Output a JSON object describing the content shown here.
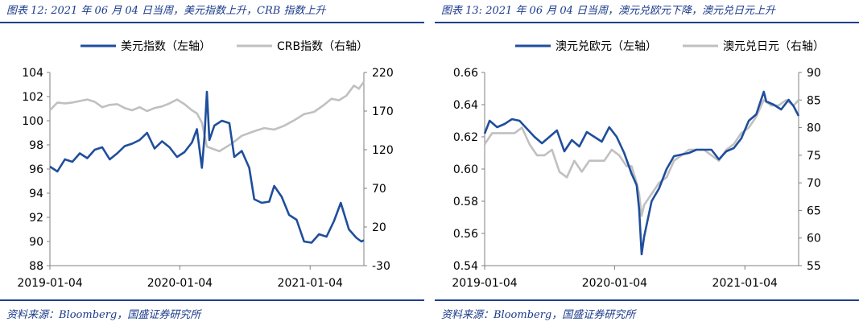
{
  "charts": [
    {
      "fig_label": "图表 12:",
      "fig_title": "2021 年 06 月 04 日当周，美元指数上升，CRB 指数上升",
      "source": "资料来源：Bloomberg，国盛证券研究所",
      "chart_data": {
        "type": "line",
        "x_ticks": [
          "2019-01-04",
          "2020-01-04",
          "2021-01-04"
        ],
        "x_range": [
          "2019-01-04",
          "2021-06-04"
        ],
        "left_axis": {
          "ticks": [
            88,
            90,
            92,
            94,
            96,
            98,
            100,
            102,
            104
          ],
          "range": [
            88,
            104
          ]
        },
        "right_axis": {
          "ticks": [
            -30,
            20,
            70,
            120,
            170,
            220
          ],
          "range": [
            -30,
            220
          ]
        },
        "series": [
          {
            "name": "美元指数（左轴）",
            "axis": "left",
            "color": "#1f4e9c",
            "points": [
              [
                "2019-01-04",
                96.2
              ],
              [
                "2019-01-25",
                95.8
              ],
              [
                "2019-02-15",
                96.8
              ],
              [
                "2019-03-08",
                96.6
              ],
              [
                "2019-03-29",
                97.3
              ],
              [
                "2019-04-19",
                96.9
              ],
              [
                "2019-05-10",
                97.6
              ],
              [
                "2019-05-31",
                97.8
              ],
              [
                "2019-06-21",
                96.8
              ],
              [
                "2019-07-12",
                97.3
              ],
              [
                "2019-08-02",
                97.9
              ],
              [
                "2019-08-23",
                98.1
              ],
              [
                "2019-09-13",
                98.4
              ],
              [
                "2019-10-04",
                99.0
              ],
              [
                "2019-10-25",
                97.7
              ],
              [
                "2019-11-15",
                98.3
              ],
              [
                "2019-12-06",
                97.8
              ],
              [
                "2019-12-27",
                97.0
              ],
              [
                "2020-01-17",
                97.4
              ],
              [
                "2020-02-07",
                98.2
              ],
              [
                "2020-02-21",
                99.3
              ],
              [
                "2020-03-06",
                96.1
              ],
              [
                "2020-03-13",
                98.6
              ],
              [
                "2020-03-20",
                102.4
              ],
              [
                "2020-03-27",
                98.4
              ],
              [
                "2020-04-10",
                99.6
              ],
              [
                "2020-05-01",
                100.0
              ],
              [
                "2020-05-22",
                99.8
              ],
              [
                "2020-06-05",
                97.0
              ],
              [
                "2020-06-26",
                97.5
              ],
              [
                "2020-07-17",
                96.1
              ],
              [
                "2020-07-31",
                93.5
              ],
              [
                "2020-08-21",
                93.2
              ],
              [
                "2020-09-11",
                93.3
              ],
              [
                "2020-09-25",
                94.6
              ],
              [
                "2020-10-16",
                93.7
              ],
              [
                "2020-11-06",
                92.2
              ],
              [
                "2020-11-27",
                91.8
              ],
              [
                "2020-12-18",
                90.0
              ],
              [
                "2021-01-08",
                89.9
              ],
              [
                "2021-01-29",
                90.6
              ],
              [
                "2021-02-19",
                90.4
              ],
              [
                "2021-03-12",
                91.7
              ],
              [
                "2021-03-31",
                93.2
              ],
              [
                "2021-04-23",
                91.0
              ],
              [
                "2021-05-14",
                90.3
              ],
              [
                "2021-05-28",
                90.0
              ],
              [
                "2021-06-04",
                90.1
              ]
            ]
          },
          {
            "name": "CRB指数（右轴）",
            "axis": "right",
            "color": "#c0c0c0",
            "points": [
              [
                "2019-01-04",
                171
              ],
              [
                "2019-01-25",
                181
              ],
              [
                "2019-02-15",
                180
              ],
              [
                "2019-03-08",
                181
              ],
              [
                "2019-03-29",
                183
              ],
              [
                "2019-04-19",
                185
              ],
              [
                "2019-05-10",
                182
              ],
              [
                "2019-05-31",
                175
              ],
              [
                "2019-06-21",
                178
              ],
              [
                "2019-07-12",
                179
              ],
              [
                "2019-08-02",
                174
              ],
              [
                "2019-08-23",
                171
              ],
              [
                "2019-09-13",
                175
              ],
              [
                "2019-10-04",
                170
              ],
              [
                "2019-10-25",
                174
              ],
              [
                "2019-11-15",
                176
              ],
              [
                "2019-12-06",
                180
              ],
              [
                "2019-12-27",
                185
              ],
              [
                "2020-01-17",
                179
              ],
              [
                "2020-02-07",
                171
              ],
              [
                "2020-02-21",
                167
              ],
              [
                "2020-03-06",
                155
              ],
              [
                "2020-03-20",
                124
              ],
              [
                "2020-04-24",
                118
              ],
              [
                "2020-05-29",
                128
              ],
              [
                "2020-06-26",
                138
              ],
              [
                "2020-07-31",
                144
              ],
              [
                "2020-08-28",
                148
              ],
              [
                "2020-09-25",
                146
              ],
              [
                "2020-10-23",
                151
              ],
              [
                "2020-11-20",
                158
              ],
              [
                "2020-12-18",
                166
              ],
              [
                "2021-01-15",
                169
              ],
              [
                "2021-02-12",
                178
              ],
              [
                "2021-03-05",
                186
              ],
              [
                "2021-03-26",
                184
              ],
              [
                "2021-04-16",
                190
              ],
              [
                "2021-05-07",
                203
              ],
              [
                "2021-05-21",
                199
              ],
              [
                "2021-06-04",
                208
              ]
            ]
          }
        ]
      }
    },
    {
      "fig_label": "图表 13:",
      "fig_title": "2021 年 06 月 04 日当周，澳元兑欧元下降，澳元兑日元上升",
      "source": "资料来源：Bloomberg，国盛证券研究所",
      "chart_data": {
        "type": "line",
        "x_ticks": [
          "2019-01-04",
          "2020-01-04",
          "2021-01-04"
        ],
        "x_range": [
          "2019-01-04",
          "2021-06-04"
        ],
        "left_axis": {
          "ticks": [
            "0.54",
            "0.56",
            "0.58",
            "0.60",
            "0.62",
            "0.64",
            "0.66"
          ],
          "range": [
            0.54,
            0.66
          ]
        },
        "right_axis": {
          "ticks": [
            55,
            60,
            65,
            70,
            75,
            80,
            85,
            90
          ],
          "range": [
            55,
            90
          ]
        },
        "series": [
          {
            "name": "澳元兑欧元（左轴）",
            "axis": "left",
            "color": "#1f4e9c",
            "points": [
              [
                "2019-01-04",
                0.622
              ],
              [
                "2019-01-18",
                0.63
              ],
              [
                "2019-02-08",
                0.626
              ],
              [
                "2019-03-01",
                0.628
              ],
              [
                "2019-03-22",
                0.631
              ],
              [
                "2019-04-12",
                0.63
              ],
              [
                "2019-05-03",
                0.625
              ],
              [
                "2019-05-24",
                0.62
              ],
              [
                "2019-06-14",
                0.616
              ],
              [
                "2019-07-05",
                0.62
              ],
              [
                "2019-07-26",
                0.624
              ],
              [
                "2019-08-16",
                0.611
              ],
              [
                "2019-09-06",
                0.618
              ],
              [
                "2019-09-27",
                0.614
              ],
              [
                "2019-10-18",
                0.623
              ],
              [
                "2019-11-08",
                0.62
              ],
              [
                "2019-11-29",
                0.617
              ],
              [
                "2019-12-20",
                0.626
              ],
              [
                "2020-01-10",
                0.62
              ],
              [
                "2020-01-31",
                0.61
              ],
              [
                "2020-02-21",
                0.597
              ],
              [
                "2020-03-06",
                0.59
              ],
              [
                "2020-03-13",
                0.575
              ],
              [
                "2020-03-20",
                0.547
              ],
              [
                "2020-03-27",
                0.558
              ],
              [
                "2020-04-17",
                0.58
              ],
              [
                "2020-05-08",
                0.588
              ],
              [
                "2020-05-29",
                0.6
              ],
              [
                "2020-06-19",
                0.608
              ],
              [
                "2020-07-10",
                0.609
              ],
              [
                "2020-07-31",
                0.61
              ],
              [
                "2020-08-21",
                0.612
              ],
              [
                "2020-09-11",
                0.612
              ],
              [
                "2020-10-02",
                0.612
              ],
              [
                "2020-10-23",
                0.606
              ],
              [
                "2020-11-13",
                0.611
              ],
              [
                "2020-12-04",
                0.613
              ],
              [
                "2020-12-25",
                0.619
              ],
              [
                "2021-01-15",
                0.63
              ],
              [
                "2021-02-05",
                0.634
              ],
              [
                "2021-02-26",
                0.648
              ],
              [
                "2021-03-05",
                0.642
              ],
              [
                "2021-03-26",
                0.64
              ],
              [
                "2021-04-16",
                0.637
              ],
              [
                "2021-05-07",
                0.643
              ],
              [
                "2021-05-21",
                0.639
              ],
              [
                "2021-06-04",
                0.633
              ]
            ]
          },
          {
            "name": "澳元兑日元（右轴）",
            "axis": "right",
            "color": "#c0c0c0",
            "points": [
              [
                "2019-01-04",
                77
              ],
              [
                "2019-01-25",
                79
              ],
              [
                "2019-02-15",
                79
              ],
              [
                "2019-03-08",
                79
              ],
              [
                "2019-03-29",
                79
              ],
              [
                "2019-04-19",
                80
              ],
              [
                "2019-05-10",
                77
              ],
              [
                "2019-05-31",
                75
              ],
              [
                "2019-06-21",
                75
              ],
              [
                "2019-07-12",
                76
              ],
              [
                "2019-08-02",
                72
              ],
              [
                "2019-08-23",
                71
              ],
              [
                "2019-09-13",
                74
              ],
              [
                "2019-10-04",
                72
              ],
              [
                "2019-10-25",
                74
              ],
              [
                "2019-11-15",
                74
              ],
              [
                "2019-12-06",
                74
              ],
              [
                "2019-12-27",
                76
              ],
              [
                "2020-01-17",
                75
              ],
              [
                "2020-02-07",
                73
              ],
              [
                "2020-02-21",
                73
              ],
              [
                "2020-03-06",
                70
              ],
              [
                "2020-03-13",
                68
              ],
              [
                "2020-03-20",
                64
              ],
              [
                "2020-03-27",
                66
              ],
              [
                "2020-04-17",
                68
              ],
              [
                "2020-05-08",
                70
              ],
              [
                "2020-05-29",
                71
              ],
              [
                "2020-06-19",
                74
              ],
              [
                "2020-07-10",
                75
              ],
              [
                "2020-07-31",
                76
              ],
              [
                "2020-08-21",
                76
              ],
              [
                "2020-09-11",
                76
              ],
              [
                "2020-10-02",
                75
              ],
              [
                "2020-10-23",
                74
              ],
              [
                "2020-11-13",
                76
              ],
              [
                "2020-12-04",
                77
              ],
              [
                "2020-12-25",
                79
              ],
              [
                "2021-01-15",
                80
              ],
              [
                "2021-02-05",
                82
              ],
              [
                "2021-02-26",
                85
              ],
              [
                "2021-03-19",
                84
              ],
              [
                "2021-04-09",
                84
              ],
              [
                "2021-04-30",
                85
              ],
              [
                "2021-05-21",
                84
              ],
              [
                "2021-06-04",
                85
              ]
            ]
          }
        ]
      }
    }
  ]
}
